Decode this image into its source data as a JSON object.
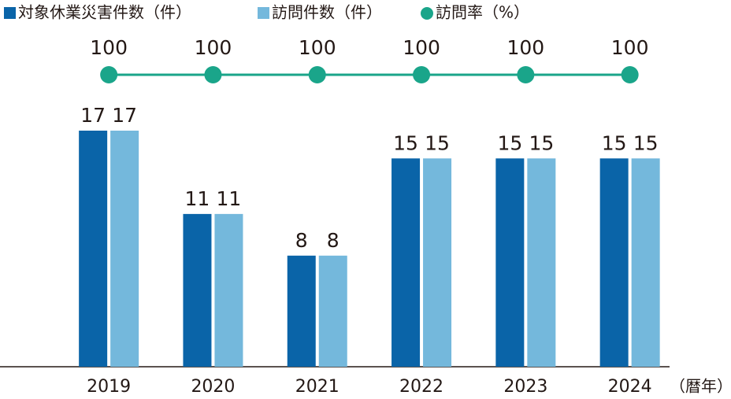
{
  "chart_data": {
    "type": "bar",
    "categories": [
      "2019",
      "2020",
      "2021",
      "2022",
      "2023",
      "2024"
    ],
    "x_axis_label": "（暦年）",
    "series": [
      {
        "name": "対象休業災害件数（件）",
        "color": "#0a64a8",
        "values": [
          17,
          11,
          8,
          15,
          15,
          15
        ]
      },
      {
        "name": "訪問件数（件）",
        "color": "#74b8dc",
        "values": [
          17,
          11,
          8,
          15,
          15,
          15
        ]
      },
      {
        "name": "訪問率（%）",
        "type": "line",
        "axis": "y2",
        "color": "#1aa58a",
        "values": [
          100,
          100,
          100,
          100,
          100,
          100
        ]
      }
    ],
    "ylim": [
      0,
      17
    ],
    "y2lim": [
      0,
      100
    ]
  }
}
